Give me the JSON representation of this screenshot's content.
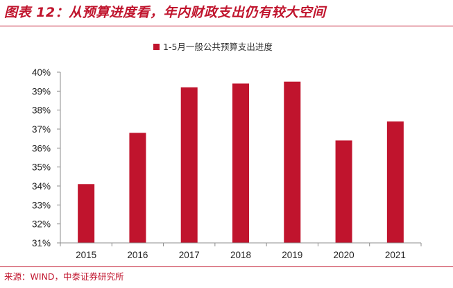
{
  "figure": {
    "title": "图表 12：从预算进度看，年内财政支出仍有较大空间",
    "source": "来源：WIND，中泰证券研究所"
  },
  "chart_data": {
    "type": "bar",
    "title": "",
    "xlabel": "",
    "ylabel": "",
    "categories": [
      "2015",
      "2016",
      "2017",
      "2018",
      "2019",
      "2020",
      "2021"
    ],
    "series": [
      {
        "name": "1-5月一般公共预算支出进度",
        "values": [
          34.1,
          36.8,
          39.2,
          39.4,
          39.5,
          36.4,
          37.4
        ]
      }
    ],
    "ylim": [
      31,
      40
    ],
    "yticks": [
      "31%",
      "32%",
      "33%",
      "34%",
      "35%",
      "36%",
      "37%",
      "38%",
      "39%",
      "40%"
    ],
    "grid": false,
    "legend_position": "top-center",
    "bar_color": "#c0142d"
  }
}
